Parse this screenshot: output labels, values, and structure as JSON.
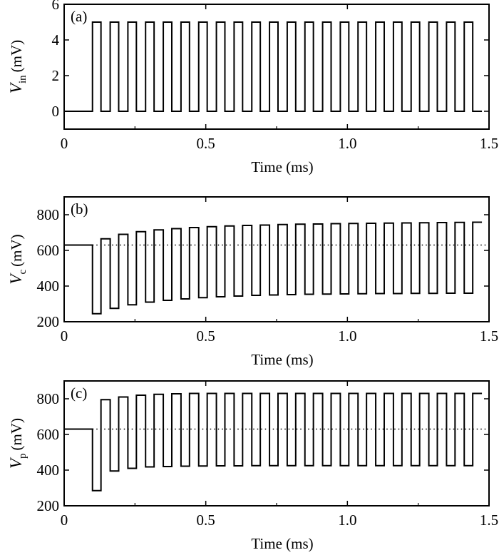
{
  "chart_data": [
    {
      "type": "line",
      "panel_label": "(a)",
      "ylabel": {
        "symbol": "V",
        "subscript": "in",
        "unit": "(mV)"
      },
      "xlabel": "Time (ms)",
      "xlim": [
        0,
        1.5
      ],
      "ylim": [
        -1,
        6
      ],
      "xticks": [
        "0",
        "0.5",
        "1.0",
        "1.5"
      ],
      "xtick_values": [
        0,
        0.5,
        1.0,
        1.5
      ],
      "yticks": [
        "0",
        "2",
        "4",
        "6"
      ],
      "ytick_values": [
        0,
        2,
        4,
        6
      ],
      "signal": {
        "baseline": 0,
        "onset_ms": 0.1,
        "period_ms": 0.0625,
        "pulse_width_ms": 0.03,
        "pulses": 22,
        "high": [
          5,
          5,
          5,
          5,
          5,
          5,
          5,
          5,
          5,
          5,
          5,
          5,
          5,
          5,
          5,
          5,
          5,
          5,
          5,
          5,
          5,
          5
        ],
        "low": [
          0,
          0,
          0,
          0,
          0,
          0,
          0,
          0,
          0,
          0,
          0,
          0,
          0,
          0,
          0,
          0,
          0,
          0,
          0,
          0,
          0,
          0
        ]
      },
      "reference_level": null
    },
    {
      "type": "line",
      "panel_label": "(b)",
      "ylabel": {
        "symbol": "V",
        "subscript": "c",
        "unit": "(mV)"
      },
      "xlabel": "Time (ms)",
      "xlim": [
        0,
        1.5
      ],
      "ylim": [
        200,
        900
      ],
      "xticks": [
        "0",
        "0.5",
        "1.0",
        "1.5"
      ],
      "xtick_values": [
        0,
        0.5,
        1.0,
        1.5
      ],
      "yticks": [
        "200",
        "400",
        "600",
        "800"
      ],
      "ytick_values": [
        200,
        400,
        600,
        800
      ],
      "signal": {
        "baseline": 630,
        "onset_ms": 0.1,
        "period_ms": 0.0625,
        "pulse_width_ms": 0.03,
        "pulses": 22,
        "low": [
          245,
          275,
          295,
          310,
          320,
          328,
          335,
          340,
          344,
          348,
          350,
          352,
          354,
          355,
          356,
          357,
          358,
          358,
          359,
          359,
          360,
          360
        ],
        "high": [
          665,
          690,
          705,
          715,
          722,
          728,
          733,
          737,
          740,
          742,
          745,
          747,
          748,
          750,
          751,
          752,
          753,
          754,
          755,
          756,
          757,
          758
        ]
      },
      "reference_level": 630
    },
    {
      "type": "line",
      "panel_label": "(c)",
      "ylabel": {
        "symbol": "V",
        "subscript": "p",
        "unit": "(mV)"
      },
      "xlabel": "Time (ms)",
      "xlim": [
        0,
        1.5
      ],
      "ylim": [
        200,
        900
      ],
      "xticks": [
        "0",
        "0.5",
        "1.0",
        "1.5"
      ],
      "xtick_values": [
        0,
        0.5,
        1.0,
        1.5
      ],
      "yticks": [
        "200",
        "400",
        "600",
        "800"
      ],
      "ytick_values": [
        200,
        400,
        600,
        800
      ],
      "signal": {
        "baseline": 630,
        "onset_ms": 0.1,
        "period_ms": 0.0625,
        "pulse_width_ms": 0.03,
        "pulses": 22,
        "low": [
          285,
          395,
          410,
          418,
          420,
          422,
          423,
          424,
          424,
          425,
          425,
          425,
          425,
          425,
          425,
          425,
          425,
          425,
          425,
          425,
          425,
          425
        ],
        "high": [
          795,
          810,
          820,
          825,
          828,
          830,
          830,
          830,
          830,
          830,
          830,
          830,
          830,
          830,
          830,
          830,
          830,
          830,
          830,
          830,
          830,
          830
        ]
      },
      "reference_level": 630
    }
  ]
}
